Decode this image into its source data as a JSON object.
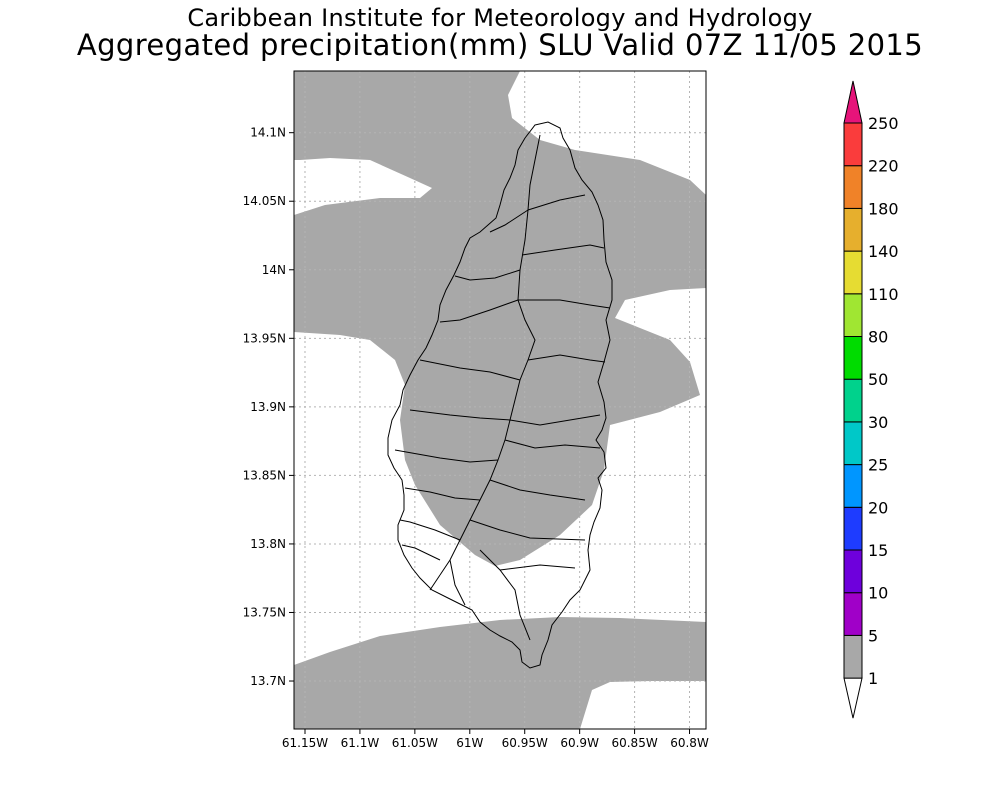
{
  "title": {
    "line1": "Caribbean Institute for Meteorology and Hydrology",
    "line2": "Aggregated precipitation(mm) SLU Valid 07Z 11/05 2015"
  },
  "map": {
    "lat_ticks": [
      "14.1N",
      "14.05N",
      "14N",
      "13.95N",
      "13.9N",
      "13.85N",
      "13.8N",
      "13.75N",
      "13.7N"
    ],
    "lon_ticks": [
      "61.15W",
      "61.1W",
      "61.05W",
      "61W",
      "60.95W",
      "60.9W",
      "60.85W",
      "60.8W"
    ],
    "lat_range": [
      13.665,
      14.145
    ],
    "lon_range": [
      -61.16,
      -60.785
    ],
    "fill_color": "#a8a8a8",
    "gridlines": "dotted"
  },
  "colorbar": {
    "labels": [
      "1",
      "5",
      "10",
      "15",
      "20",
      "25",
      "30",
      "50",
      "80",
      "110",
      "140",
      "180",
      "220",
      "250"
    ],
    "colors": [
      "#ffffff",
      "#a8a8a8",
      "#a000c8",
      "#6e00dc",
      "#1e3cff",
      "#0096ff",
      "#00c8c8",
      "#00d28c",
      "#00dc00",
      "#a0e632",
      "#e6dc32",
      "#e6af2d",
      "#f08228",
      "#fa3c3c",
      "#e6147a"
    ]
  }
}
